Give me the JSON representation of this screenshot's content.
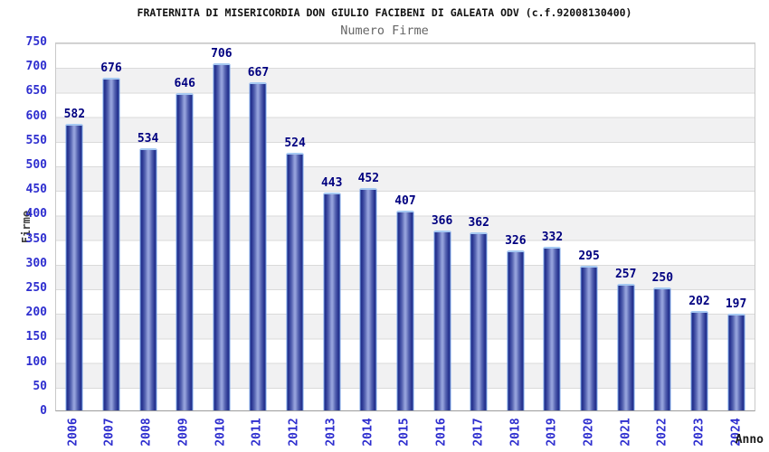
{
  "chart_data": {
    "type": "bar",
    "title": "FRATERNITA DI MISERICORDIA DON GIULIO FACIBENI DI GALEATA ODV (c.f.92008130400)",
    "subtitle": "Numero Firme",
    "xlabel": "Anno",
    "ylabel": "Firme",
    "categories": [
      "2006",
      "2007",
      "2008",
      "2009",
      "2010",
      "2011",
      "2012",
      "2013",
      "2014",
      "2015",
      "2016",
      "2017",
      "2018",
      "2019",
      "2020",
      "2021",
      "2022",
      "2023",
      "2024"
    ],
    "values": [
      582,
      676,
      534,
      646,
      706,
      667,
      524,
      443,
      452,
      407,
      366,
      362,
      326,
      332,
      295,
      257,
      250,
      202,
      197
    ],
    "ylim": [
      0,
      750
    ],
    "ytick_step": 50,
    "grid": true,
    "alternating_bands": true,
    "legend": "none",
    "colors": {
      "bar_edge": "#1e2c88",
      "bar_mid": "#93a0da",
      "bar_outline": "#7aa4e8",
      "bar_cap": "#a6c9f2",
      "tick_label": "#2e2ecf",
      "value_label": "#000080",
      "band_gray": "#f1f1f2",
      "grid_line": "#dadada",
      "title": "#111111",
      "subtitle": "#666666"
    }
  }
}
